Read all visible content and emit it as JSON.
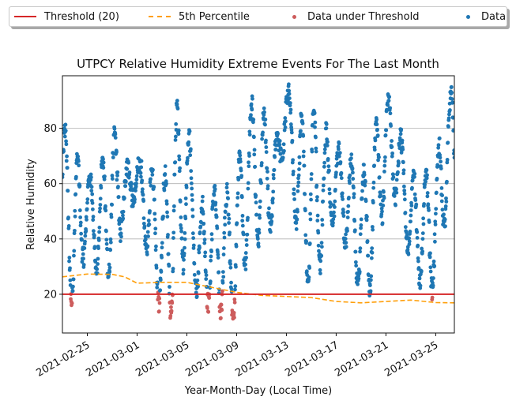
{
  "chart_data": {
    "type": "scatter",
    "title": "UTPCY Relative Humidity Extreme Events For The Last Month",
    "xlabel": "Year-Month-Day (Local Time)",
    "ylabel": "Relative Humidity",
    "x_range": [
      "2021-02-23",
      "2021-03-26 12:00"
    ],
    "ylim": [
      6,
      99
    ],
    "y_ticks": [
      20,
      40,
      60,
      80
    ],
    "x_tick_labels": [
      "2021-02-25",
      "2021-03-01",
      "2021-03-05",
      "2021-03-09",
      "2021-03-13",
      "2021-03-17",
      "2021-03-21",
      "2021-03-25"
    ],
    "grid": "horizontal",
    "legend_position": "top",
    "legend": [
      {
        "label": "Threshold (20)",
        "kind": "line",
        "color": "#d62728"
      },
      {
        "label": "5th Percentile",
        "kind": "dashed-line",
        "color": "#ff9f0a"
      },
      {
        "label": "Data under Threshold",
        "kind": "marker",
        "color": "#cd5c5c"
      },
      {
        "label": "Data",
        "kind": "marker",
        "color": "#1f77b4"
      }
    ],
    "threshold": 20,
    "percentile_5th": {
      "x": [
        "2021-02-23",
        "2021-02-25",
        "2021-02-27",
        "2021-02-28",
        "2021-03-01",
        "2021-03-03",
        "2021-03-05",
        "2021-03-07",
        "2021-03-09",
        "2021-03-11",
        "2021-03-13",
        "2021-03-15",
        "2021-03-17",
        "2021-03-19",
        "2021-03-21",
        "2021-03-23",
        "2021-03-25",
        "2021-03-26 12:00"
      ],
      "y": [
        26.3,
        27.3,
        27.2,
        26.3,
        24.0,
        24.3,
        24.3,
        22.5,
        20.7,
        19.6,
        19.2,
        18.8,
        17.4,
        16.9,
        17.4,
        17.9,
        17.0,
        16.9
      ]
    },
    "daily_rh": {
      "dates": [
        "2021-02-23",
        "2021-02-24",
        "2021-02-25",
        "2021-02-26",
        "2021-02-27",
        "2021-02-28",
        "2021-03-01",
        "2021-03-02",
        "2021-03-03",
        "2021-03-04",
        "2021-03-05",
        "2021-03-06",
        "2021-03-07",
        "2021-03-08",
        "2021-03-09",
        "2021-03-10",
        "2021-03-11",
        "2021-03-12",
        "2021-03-13",
        "2021-03-14",
        "2021-03-15",
        "2021-03-16",
        "2021-03-17",
        "2021-03-18",
        "2021-03-19",
        "2021-03-20",
        "2021-03-21",
        "2021-03-22",
        "2021-03-23",
        "2021-03-24",
        "2021-03-25",
        "2021-03-26"
      ],
      "min": [
        28,
        13,
        42,
        22,
        30,
        48,
        57,
        28,
        12,
        12,
        40,
        15,
        16,
        12,
        11,
        40,
        40,
        45,
        82,
        35,
        21,
        35,
        50,
        35,
        18,
        25,
        58,
        55,
        30,
        23,
        22,
        55
      ],
      "max": [
        82,
        70,
        63,
        64,
        80,
        67,
        67,
        68,
        55,
        88,
        83,
        50,
        60,
        55,
        63,
        90,
        88,
        75,
        94,
        82,
        88,
        80,
        72,
        70,
        62,
        78,
        94,
        80,
        63,
        62,
        68,
        93
      ]
    },
    "series_note_values": "Data = hourly RH values; points below 20 shown as Data under Threshold"
  }
}
